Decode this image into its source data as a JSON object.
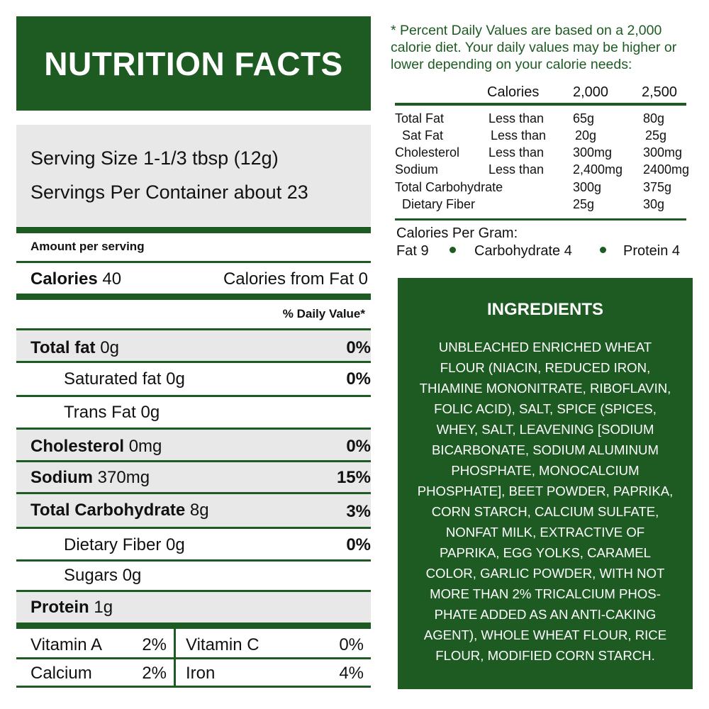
{
  "title": "NUTRITION FACTS",
  "serving": {
    "size": "Serving Size 1-1/3 tbsp (12g)",
    "per_container": "Servings Per Container about 23"
  },
  "amount_per_serving": "Amount per serving",
  "calories": {
    "label": "Calories",
    "value": "40",
    "from_fat": "Calories from Fat 0"
  },
  "daily_value_header": "% Daily Value*",
  "nutrients": [
    {
      "name": "Total fat",
      "amount": "0g",
      "dv": "0%"
    },
    {
      "name": "Saturated fat 0g",
      "amount": "",
      "dv": "0%"
    },
    {
      "name": "Trans Fat 0g",
      "amount": "",
      "dv": ""
    },
    {
      "name": "Cholesterol",
      "amount": "0mg",
      "dv": "0%"
    },
    {
      "name": "Sodium",
      "amount": "370mg",
      "dv": "15%"
    },
    {
      "name": "Total Carbohydrate",
      "amount": "8g",
      "dv": "3%"
    },
    {
      "name": "Dietary Fiber 0g",
      "amount": "",
      "dv": "0%"
    },
    {
      "name": "Sugars 0g",
      "amount": "",
      "dv": ""
    },
    {
      "name": "Protein",
      "amount": "1g",
      "dv": ""
    }
  ],
  "vitamins": [
    {
      "name": "Vitamin A",
      "dv": "2%"
    },
    {
      "name": "Vitamin C",
      "dv": "0%"
    },
    {
      "name": "Calcium",
      "dv": "2%"
    },
    {
      "name": "Iron",
      "dv": "4%"
    }
  ],
  "dv_note": "* Percent Daily Values are based on a 2,000 calorie diet. Your daily values may be higher or lower depending on your calorie needs:",
  "dv_table": {
    "header": {
      "label": "Calories",
      "c1": "2,000",
      "c2": "2,500"
    },
    "rows": [
      {
        "name": "Total Fat",
        "qual": "Less than",
        "c1": "65g",
        "c2": "80g"
      },
      {
        "name": "Sat Fat",
        "qual": "Less than",
        "c1": "20g",
        "c2": "25g"
      },
      {
        "name": "Cholesterol",
        "qual": "Less than",
        "c1": "300mg",
        "c2": "300mg"
      },
      {
        "name": "Sodium",
        "qual": "Less than",
        "c1": "2,400mg",
        "c2": "2400mg"
      },
      {
        "name": "Total Carbohydrate",
        "qual": "",
        "c1": "300g",
        "c2": "375g"
      },
      {
        "name": "Dietary Fiber",
        "qual": "",
        "c1": "25g",
        "c2": "30g"
      }
    ]
  },
  "calories_per_gram": {
    "label": "Calories Per Gram:",
    "fat": "Fat 9",
    "carb": "Carbohydrate 4",
    "protein": "Protein 4"
  },
  "ingredients": {
    "title": "INGREDIENTS",
    "lines": [
      "UNBLEACHED ENRICHED WHEAT",
      "FLOUR (NIACIN, REDUCED IRON,",
      "THIAMINE MONONITRATE, RIBOFLAVIN,",
      "FOLIC ACID), SALT, SPICE (SPICES,",
      "WHEY, SALT, LEAVENING [SODIUM",
      "BICARBONATE, SODIUM ALUMINUM",
      "PHOSPHATE,  MONOCALCIUM",
      "PHOSPHATE], BEET POWDER, PAPRIKA,",
      "CORN STARCH, CALCIUM SULFATE,",
      "NONFAT MILK, EXTRACTIVE OF",
      "PAPRIKA, EGG YOLKS, CARAMEL",
      "COLOR, GARLIC POWDER, WITH NOT",
      "MORE THAN 2% TRICALCIUM PHOS-",
      "PHATE ADDED AS AN ANTI-CAKING",
      "AGENT), WHOLE WHEAT FLOUR, RICE",
      "FLOUR, MODIFIED CORN STARCH."
    ]
  },
  "colors": {
    "brand_green": "#1e5b23",
    "shade_gray": "#e8e8e8"
  }
}
